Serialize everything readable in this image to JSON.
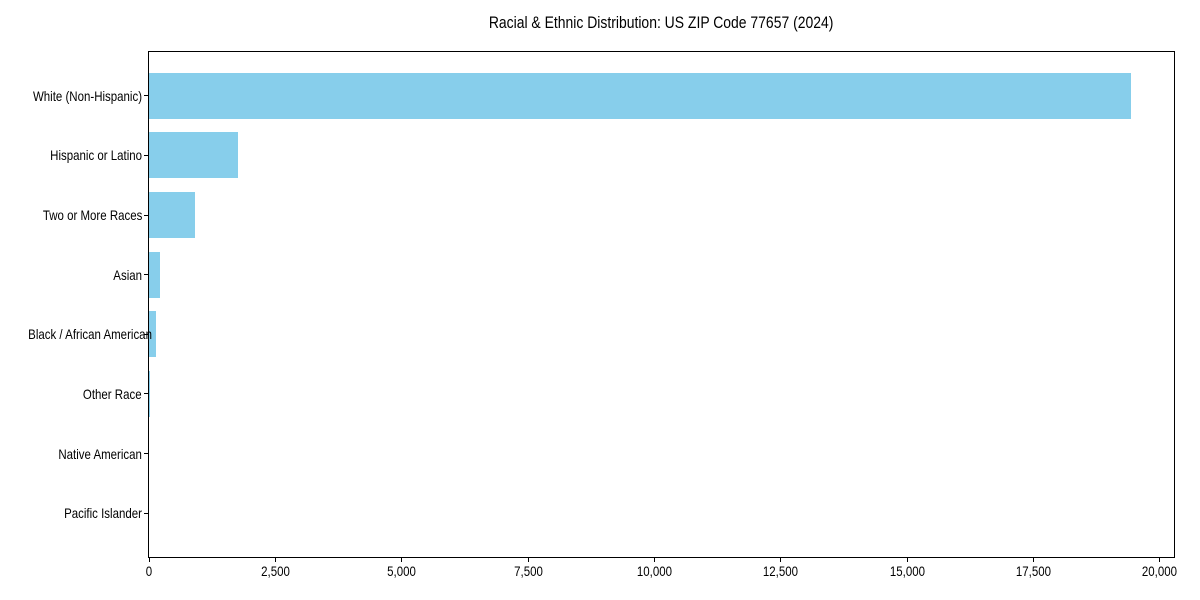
{
  "chart_data": {
    "type": "bar",
    "orientation": "horizontal",
    "title": "Racial & Ethnic Distribution: US ZIP Code 77657 (2024)",
    "categories": [
      "White (Non-Hispanic)",
      "Hispanic or Latino",
      "Two or More Races",
      "Asian",
      "Black / African American",
      "Other Race",
      "Native American",
      "Pacific Islander"
    ],
    "values": [
      19425,
      1760,
      910,
      220,
      140,
      15,
      0,
      0
    ],
    "xlabel": "",
    "ylabel": "",
    "xlim": [
      0,
      20280
    ],
    "x_ticks": [
      0,
      2500,
      5000,
      7500,
      10000,
      12500,
      15000,
      17500,
      20000
    ],
    "x_tick_labels": [
      "0",
      "2,500",
      "5,000",
      "7,500",
      "10,000",
      "12,500",
      "15,000",
      "17,500",
      "20,000"
    ],
    "bar_color": "#87CEEB",
    "spine_color": "#000000",
    "text_color": "#000000",
    "background_color": "#ffffff",
    "grid": false,
    "legend": false
  }
}
